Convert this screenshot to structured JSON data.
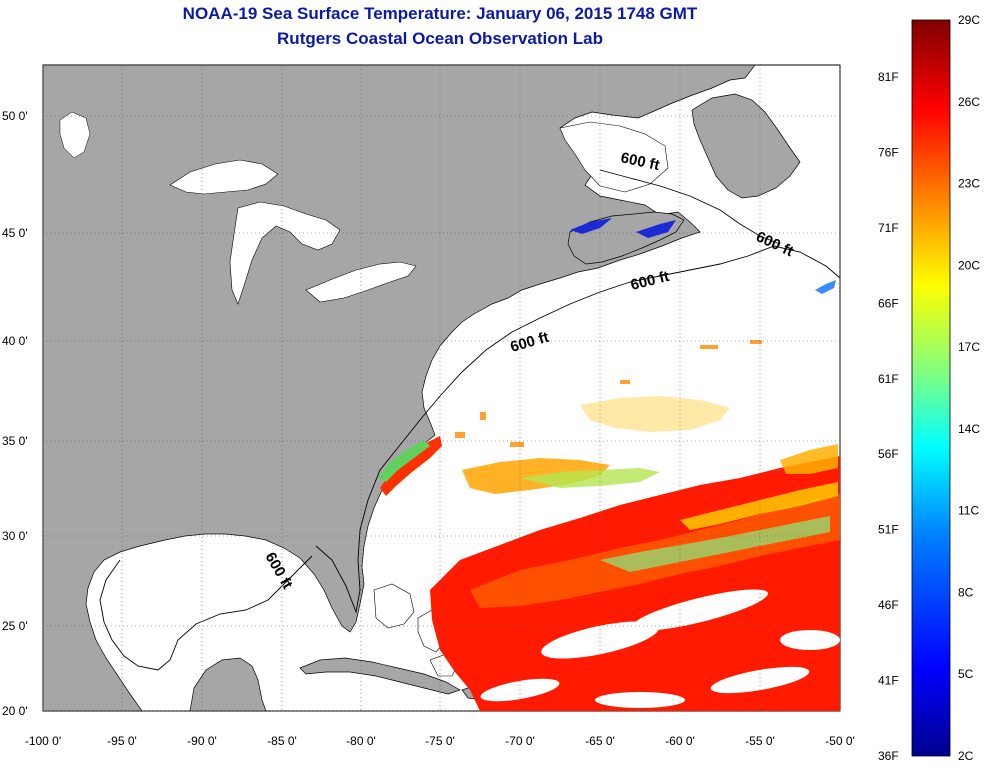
{
  "header": {
    "title": "NOAA-19 Sea Surface Temperature:  January 06, 2015 1748 GMT",
    "subtitle": "Rutgers Coastal Ocean Observation Lab"
  },
  "map": {
    "land_color": "#a6a6a6",
    "ocean_color": "#ffffff",
    "lat_labels": [
      "50 0'",
      "45 0'",
      "40 0'",
      "35 0'",
      "30 0'",
      "25 0'",
      "20 0'"
    ],
    "lon_labels": [
      "-100 0'",
      "-95 0'",
      "-90 0'",
      "-85 0'",
      "-80 0'",
      "-75 0'",
      "-70 0'",
      "-65 0'",
      "-60 0'",
      "-55 0'",
      "-50 0'"
    ],
    "isobath_labels": [
      "600 ft",
      "600 ft",
      "600 ft",
      "600 ft",
      "600 ft"
    ]
  },
  "colorbar": {
    "celsius_labels": [
      "29C",
      "26C",
      "23C",
      "20C",
      "17C",
      "14C",
      "11C",
      "8C",
      "5C",
      "2C"
    ],
    "fahrenheit_labels": [
      "81F",
      "76F",
      "71F",
      "66F",
      "61F",
      "56F",
      "51F",
      "46F",
      "41F",
      "36F"
    ],
    "colors": [
      "#00008f",
      "#0000ff",
      "#0080ff",
      "#00ffff",
      "#80ff80",
      "#ffff00",
      "#ff8000",
      "#ff0000",
      "#800000"
    ]
  }
}
